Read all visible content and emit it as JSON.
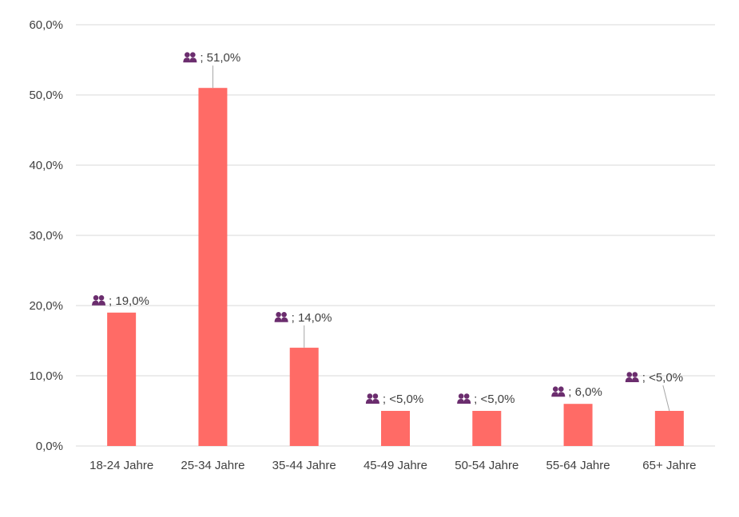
{
  "chart_data": {
    "type": "bar",
    "title": "",
    "xlabel": "",
    "ylabel": "",
    "ylim": [
      0,
      60
    ],
    "yticks": [
      "0,0%",
      "10,0%",
      "20,0%",
      "30,0%",
      "40,0%",
      "50,0%",
      "60,0%"
    ],
    "ytick_values": [
      0,
      10,
      20,
      30,
      40,
      50,
      60
    ],
    "grid": true,
    "categories": [
      "18-24 Jahre",
      "25-34 Jahre",
      "35-44 Jahre",
      "45-49 Jahre",
      "50-54 Jahre",
      "55-64 Jahre",
      "65+ Jahre"
    ],
    "values": [
      19,
      51,
      14,
      5,
      5,
      6,
      5
    ],
    "data_labels": [
      "; 19,0%",
      "; 51,0%",
      "; 14,0%",
      "; <5,0%",
      "; <5,0%",
      "; 6,0%",
      "; <5,0%"
    ],
    "label_icon": "people-icon",
    "colors": {
      "bar": "#ff6b66",
      "icon": "#6b2d6e",
      "grid": "#d9d9d9",
      "text": "#404040"
    }
  }
}
